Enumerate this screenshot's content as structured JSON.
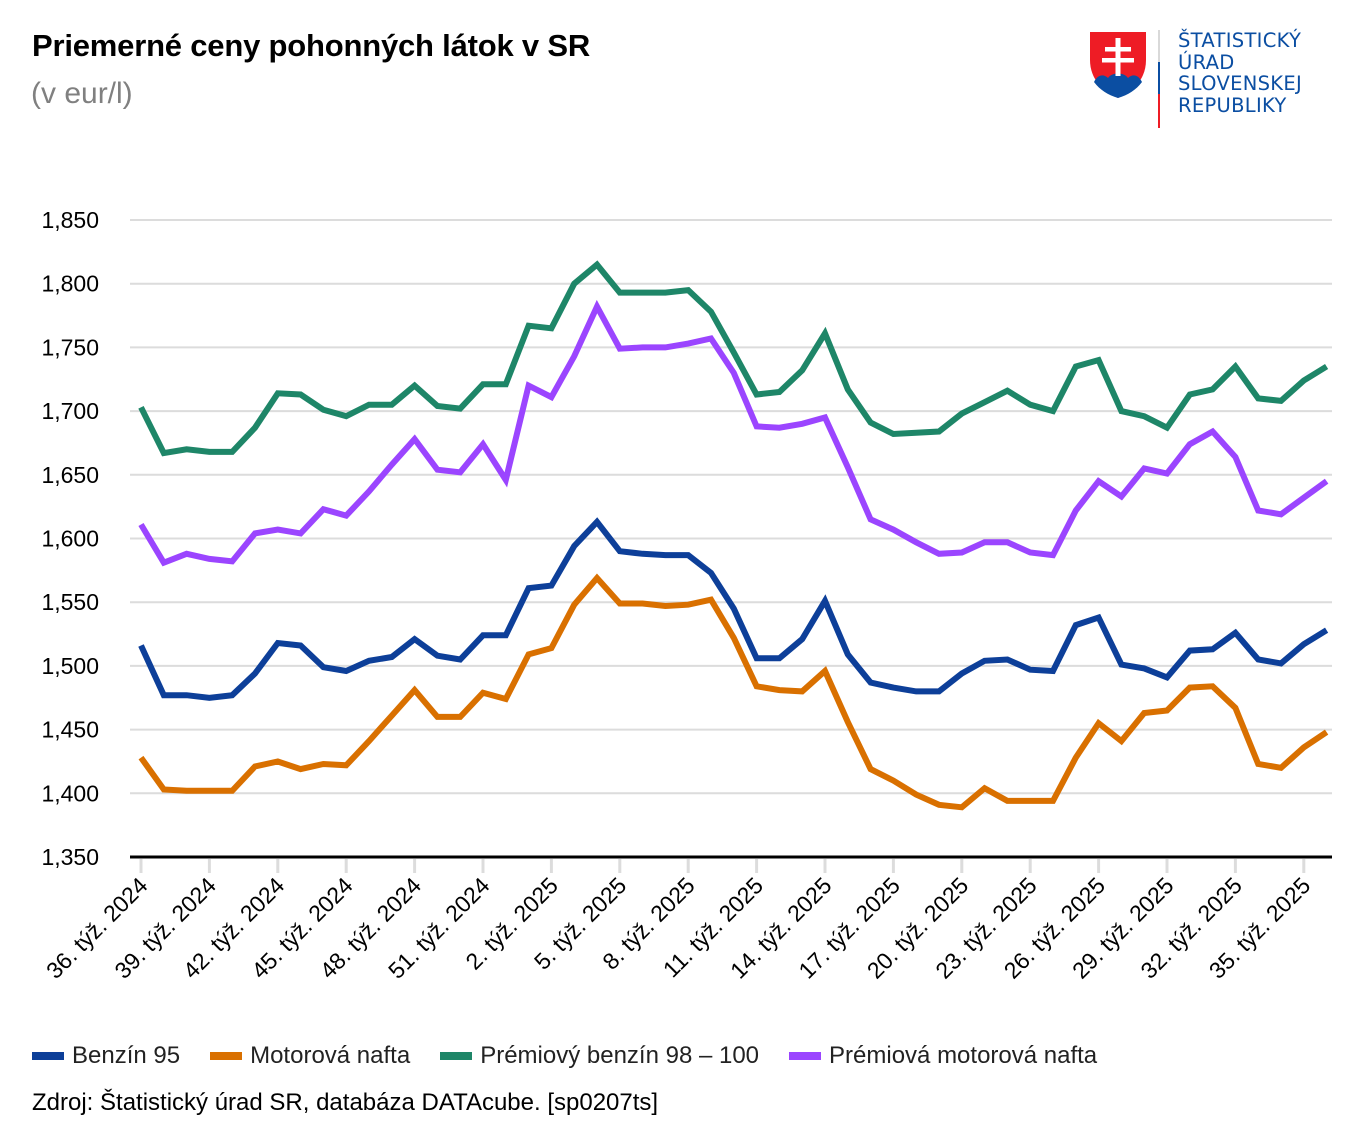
{
  "header": {
    "title": "Priemerné ceny pohonných látok v SR",
    "subtitle": "(v eur/l)"
  },
  "logo": {
    "lines": [
      "ŠTATISTICKÝ",
      "ÚRAD",
      "SLOVENSKEJ",
      "REPUBLIKY"
    ],
    "color": "#0b4ea2"
  },
  "footer": {
    "source": "Zdroj: Štatistický úrad SR, databáza DATAcube. [sp0207ts]"
  },
  "chart_data": {
    "type": "line",
    "title": "Priemerné ceny pohonných látok v SR",
    "subtitle": "(v eur/l)",
    "xlabel": "",
    "ylabel": "",
    "ylim": [
      1.35,
      1.85
    ],
    "yticks": [
      1.35,
      1.4,
      1.45,
      1.5,
      1.55,
      1.6,
      1.65,
      1.7,
      1.75,
      1.8,
      1.85
    ],
    "ytick_labels": [
      "1,350",
      "1,400",
      "1,450",
      "1,500",
      "1,550",
      "1,600",
      "1,650",
      "1,700",
      "1,750",
      "1,800",
      "1,850"
    ],
    "grid": true,
    "legend_position": "bottom",
    "x": [
      "36. týž. 2024",
      "37. týž. 2024",
      "38. týž. 2024",
      "39. týž. 2024",
      "40. týž. 2024",
      "41. týž. 2024",
      "42. týž. 2024",
      "43. týž. 2024",
      "44. týž. 2024",
      "45. týž. 2024",
      "46. týž. 2024",
      "47. týž. 2024",
      "48. týž. 2024",
      "49. týž. 2024",
      "50. týž. 2024",
      "51. týž. 2024",
      "52. týž. 2024",
      "1. týž. 2025",
      "2. týž. 2025",
      "3. týž. 2025",
      "4. týž. 2025",
      "5. týž. 2025",
      "6. týž. 2025",
      "7. týž. 2025",
      "8. týž. 2025",
      "9. týž. 2025",
      "10. týž. 2025",
      "11. týž. 2025",
      "12. týž. 2025",
      "13. týž. 2025",
      "14. týž. 2025",
      "15. týž. 2025",
      "16. týž. 2025",
      "17. týž. 2025",
      "18. týž. 2025",
      "19. týž. 2025",
      "20. týž. 2025",
      "21. týž. 2025",
      "22. týž. 2025",
      "23. týž. 2025",
      "24. týž. 2025",
      "25. týž. 2025",
      "26. týž. 2025",
      "27. týž. 2025",
      "28. týž. 2025",
      "29. týž. 2025",
      "30. týž. 2025",
      "31. týž. 2025",
      "32. týž. 2025",
      "33. týž. 2025",
      "34. týž. 2025",
      "35. týž. 2025",
      "36. týž. 2025"
    ],
    "xtick_labels": [
      "36. týž. 2024",
      "39. týž. 2024",
      "42. týž. 2024",
      "45. týž. 2024",
      "48. týž. 2024",
      "51. týž. 2024",
      "2. týž. 2025",
      "5. týž. 2025",
      "8. týž. 2025",
      "11. týž. 2025",
      "14. týž. 2025",
      "17. týž. 2025",
      "20. týž. 2025",
      "23. týž. 2025",
      "26. týž. 2025",
      "29. týž. 2025",
      "32. týž. 2025",
      "35. týž. 2025"
    ],
    "series": [
      {
        "name": "Benzín 95",
        "color": "#0d3f99",
        "values": [
          1.516,
          1.477,
          1.477,
          1.475,
          1.477,
          1.494,
          1.518,
          1.516,
          1.499,
          1.496,
          1.504,
          1.507,
          1.521,
          1.508,
          1.505,
          1.524,
          1.524,
          1.561,
          1.563,
          1.594,
          1.613,
          1.59,
          1.588,
          1.587,
          1.587,
          1.573,
          1.545,
          1.506,
          1.506,
          1.521,
          1.551,
          1.509,
          1.487,
          1.483,
          1.48,
          1.48,
          1.494,
          1.504,
          1.505,
          1.497,
          1.496,
          1.532,
          1.538,
          1.501,
          1.498,
          1.491,
          1.512,
          1.513,
          1.526,
          1.505,
          1.502,
          1.517,
          1.528
        ]
      },
      {
        "name": "Motorová nafta",
        "color": "#d97000",
        "values": [
          1.428,
          1.403,
          1.402,
          1.402,
          1.402,
          1.421,
          1.425,
          1.419,
          1.423,
          1.422,
          1.441,
          1.461,
          1.481,
          1.46,
          1.46,
          1.479,
          1.474,
          1.509,
          1.514,
          1.548,
          1.569,
          1.549,
          1.549,
          1.547,
          1.548,
          1.552,
          1.522,
          1.484,
          1.481,
          1.48,
          1.496,
          1.456,
          1.419,
          1.41,
          1.399,
          1.391,
          1.389,
          1.404,
          1.394,
          1.394,
          1.394,
          1.428,
          1.455,
          1.441,
          1.463,
          1.465,
          1.483,
          1.484,
          1.467,
          1.423,
          1.42,
          1.436,
          1.448
        ]
      },
      {
        "name": "Prémiový benzín 98 – 100",
        "color": "#1e8668",
        "values": [
          1.703,
          1.667,
          1.67,
          1.668,
          1.668,
          1.687,
          1.714,
          1.713,
          1.701,
          1.696,
          1.705,
          1.705,
          1.72,
          1.704,
          1.702,
          1.721,
          1.721,
          1.767,
          1.765,
          1.8,
          1.815,
          1.793,
          1.793,
          1.793,
          1.795,
          1.778,
          1.746,
          1.713,
          1.715,
          1.732,
          1.761,
          1.717,
          1.691,
          1.682,
          1.683,
          1.684,
          1.698,
          1.707,
          1.716,
          1.705,
          1.7,
          1.735,
          1.74,
          1.7,
          1.696,
          1.687,
          1.713,
          1.717,
          1.735,
          1.71,
          1.708,
          1.724,
          1.735
        ]
      },
      {
        "name": "Prémiová motorová nafta",
        "color": "#9b45ff",
        "values": [
          1.611,
          1.581,
          1.588,
          1.584,
          1.582,
          1.604,
          1.607,
          1.604,
          1.623,
          1.618,
          1.637,
          1.658,
          1.678,
          1.654,
          1.652,
          1.674,
          1.646,
          1.72,
          1.711,
          1.743,
          1.782,
          1.749,
          1.75,
          1.75,
          1.753,
          1.757,
          1.73,
          1.688,
          1.687,
          1.69,
          1.695,
          1.656,
          1.615,
          1.607,
          1.597,
          1.588,
          1.589,
          1.597,
          1.597,
          1.589,
          1.587,
          1.622,
          1.645,
          1.633,
          1.655,
          1.651,
          1.674,
          1.684,
          1.664,
          1.622,
          1.619,
          1.632,
          1.645
        ]
      }
    ]
  }
}
